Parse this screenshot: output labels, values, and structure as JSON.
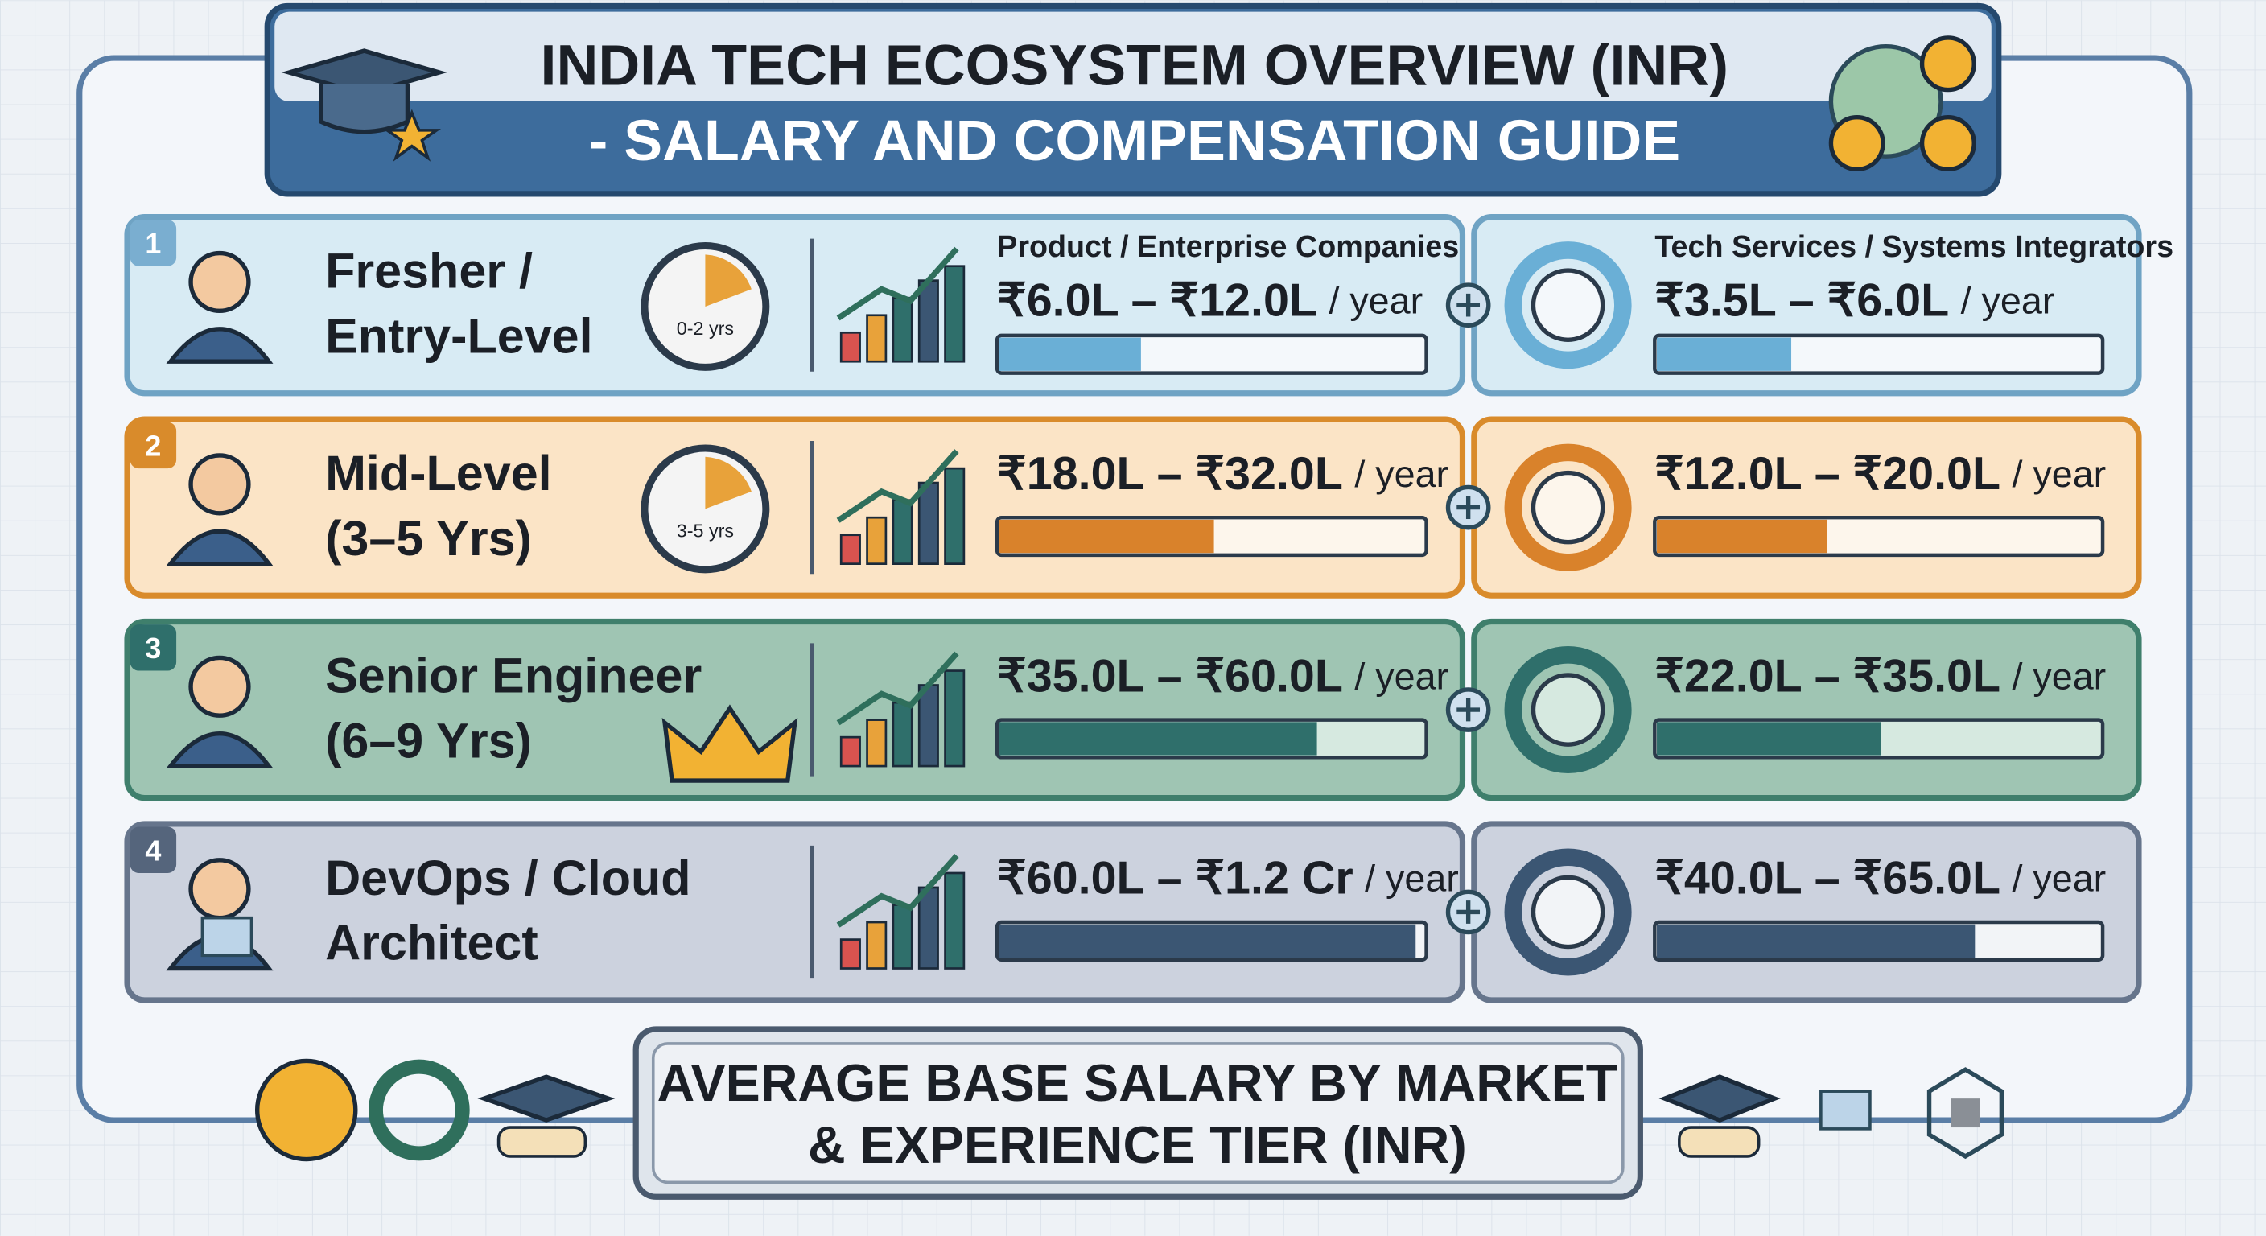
{
  "header": {
    "title_line1": "INDIA TECH ECOSYSTEM OVERVIEW (INR)",
    "title_line2": "- SALARY AND COMPENSATION GUIDE"
  },
  "columns": {
    "product": "Product / Enterprise Companies",
    "services": "Tech Services / Systems Integrators"
  },
  "unit": "/ year",
  "tiers": [
    {
      "number": "1",
      "name_line1": "Fresher /",
      "name_line2": "Entry-Level",
      "icon_label": "0-2 yrs",
      "product_range": "₹6.0L – ₹12.0L",
      "services_range": "₹3.5L – ₹6.0L"
    },
    {
      "number": "2",
      "name_line1": "Mid-Level",
      "name_line2": "(3–5 Yrs)",
      "icon_label": "3-5 yrs",
      "product_range": "₹18.0L – ₹32.0L",
      "services_range": "₹12.0L – ₹20.0L"
    },
    {
      "number": "3",
      "name_line1": "Senior Engineer",
      "name_line2": "(6–9 Yrs)",
      "product_range": "₹35.0L – ₹60.0L",
      "services_range": "₹22.0L – ₹35.0L"
    },
    {
      "number": "4",
      "name_line1": "DevOps / Cloud",
      "name_line2": "Architect",
      "product_range": "₹60.0L – ₹1.2 Cr",
      "services_range": "₹40.0L – ₹65.0L"
    }
  ],
  "footer": {
    "line1": "AVERAGE BASE SALARY BY MARKET",
    "line2": "& EXPERIENCE TIER (INR)"
  }
}
